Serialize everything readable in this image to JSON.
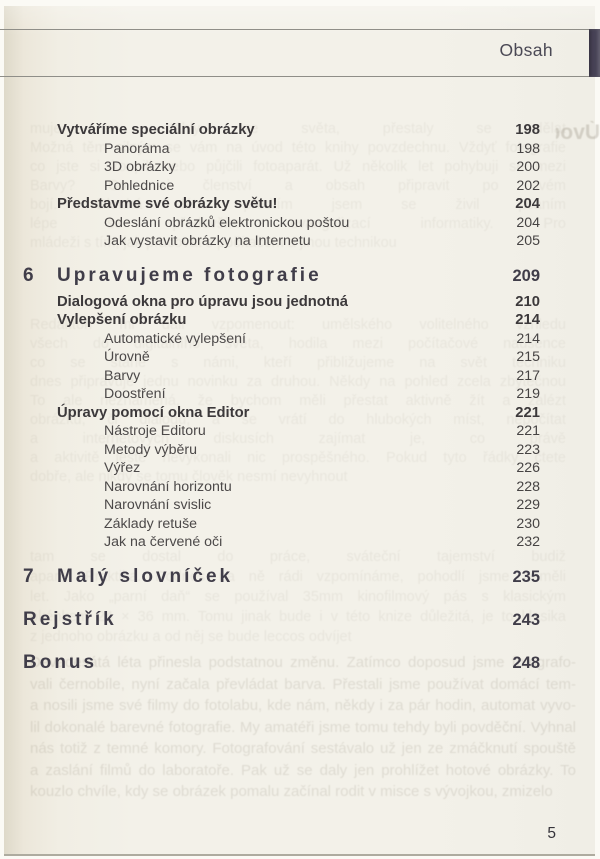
{
  "header": {
    "title": "Obsah"
  },
  "footer": {
    "page_number": "5"
  },
  "colors": {
    "accent_bar": "#474256",
    "page_background": "#f3f1e9",
    "rule_line": "#8f8e88",
    "text_primary": "#3c393b"
  },
  "toc": {
    "rows": [
      {
        "type": "section",
        "label": "Vytváříme speciální obrázky",
        "page": "198"
      },
      {
        "type": "sub",
        "label": "Panoráma",
        "page": "198"
      },
      {
        "type": "sub",
        "label": "3D obrázky",
        "page": "200"
      },
      {
        "type": "sub",
        "label": "Pohlednice",
        "page": "202"
      },
      {
        "type": "section",
        "label": "Představme své obrázky světu!",
        "page": "204"
      },
      {
        "type": "sub",
        "label": "Odeslání obrázků elektronickou poštou",
        "page": "204"
      },
      {
        "type": "sub",
        "label": "Jak vystavit obrázky na Internetu",
        "page": "205"
      },
      {
        "type": "chapter",
        "number": "6",
        "label": "Upravujeme fotografie",
        "page": "209"
      },
      {
        "type": "section",
        "label": "Dialogová okna pro úpravu jsou jednotná",
        "page": "210"
      },
      {
        "type": "section",
        "label": "Vylepšení obrázku",
        "page": "214"
      },
      {
        "type": "sub",
        "label": "Automatické vylepšení",
        "page": "214"
      },
      {
        "type": "sub",
        "label": "Úrovně",
        "page": "215"
      },
      {
        "type": "sub",
        "label": "Barvy",
        "page": "217"
      },
      {
        "type": "sub",
        "label": "Doostření",
        "page": "219"
      },
      {
        "type": "section",
        "label": "Úpravy pomocí okna Editor",
        "page": "221"
      },
      {
        "type": "sub",
        "label": "Nástroje Editoru",
        "page": "221"
      },
      {
        "type": "sub",
        "label": "Metody výběru",
        "page": "223"
      },
      {
        "type": "sub",
        "label": "Výřez",
        "page": "226"
      },
      {
        "type": "sub",
        "label": "Narovnání horizontu",
        "page": "228"
      },
      {
        "type": "sub",
        "label": "Narovnání svislic",
        "page": "229"
      },
      {
        "type": "sub",
        "label": "Základy retuše",
        "page": "230"
      },
      {
        "type": "sub",
        "label": "Jak na červené oči",
        "page": "232"
      },
      {
        "type": "chapter",
        "number": "7",
        "label": "Malý slovníček",
        "page": "235"
      },
      {
        "type": "backmatter",
        "number": "",
        "label": "Rejstřík",
        "page": "243"
      },
      {
        "type": "backmatter",
        "number": "",
        "label": "Bonus",
        "page": "248"
      }
    ]
  },
  "bleedthrough": {
    "ghost_title": "Úvod",
    "blocks": [
      {
        "lines": [
          "muje se stáhly ze světa, přestaly se dělat",
          "Možná těm silným se vám na úvod této knihy povzdechnu. Vždyť fotografie",
          "co jste si koupili nebo půjčili fotoaparát. Už několik let pohybuji se mezi",
          "Barvy? Co si členství a obsah připravit po svém",
          "bojí. Dlouhá léta předtím jsem se živil psaním",
          "lépe se především evangelizací informatiky. Pro",
          "mládeži s tím, jak pracovat s počítačem a jinou technikou"
        ]
      },
      {
        "lines": [
          "Redaktoři mi dali vzpomenout: umělského volitelného vzhledu",
          "všech do digitálního světa, hodila mezi počítačové nadšence",
          "co se stane s námi, kteří přibližujeme na svět techniku",
          "dnes připravuje jednu novinku za druhou. Někdy na pohled zcela zbytečnou",
          "To ale neznamená, že bychom měli přestat aktivně žít a zalézt",
          "obrázků, či dialogů, a se vrátí do hlubokých míst, nepočítat",
          "a internetových diskusích zajímat je, co právě",
          "a aktivitě ještě nevykonali nic prospěšného. Pokud tyto řádky čtete",
          "dobře, ale nikdy se tomu člověk nesmí nevyhnout"
        ]
      },
      {
        "lines": [
          "tam se dostal do práce, sváteční tajemství budiž",
          "aparát Praktika. Dodnes na ně rádi vzpomínáme, pohodlí jsme neměli",
          "let. Jako „parní daň“ se používal 35mm kinofilmový pás s klasickým",
          "okénkem 24 × 36 mm. Tomu jinak bude i v této knize důležitá, je to klasika",
          "z jednoho obrázku a od něj se bude leccos odvíjet"
        ]
      },
      {
        "lines": [
          "Devadesátá léta přinesla podstatnou změnu. Zatímco doposud jsme fotografo-",
          "vali černobíle, nyní začala převládat barva. Přestali jsme používat domácí tem-",
          "a nosili jsme své filmy do fotolabu, kde nám, někdy i za pár hodin, automat vyvo-",
          "lil dokonalé barevné fotografie. My amatéři jsme tomu tehdy byli povděční. Vyhnal",
          "nás totiž z temné komory. Fotografování sestávalo už jen ze zmáčknutí spouště",
          "a zaslání filmů do laboratoře. Pak už se daly jen prohlížet hotové obrázky. To",
          "kouzlo chvíle, kdy se obrázek pomalu začínal rodit v misce s vývojkou, zmizelo"
        ]
      }
    ]
  }
}
